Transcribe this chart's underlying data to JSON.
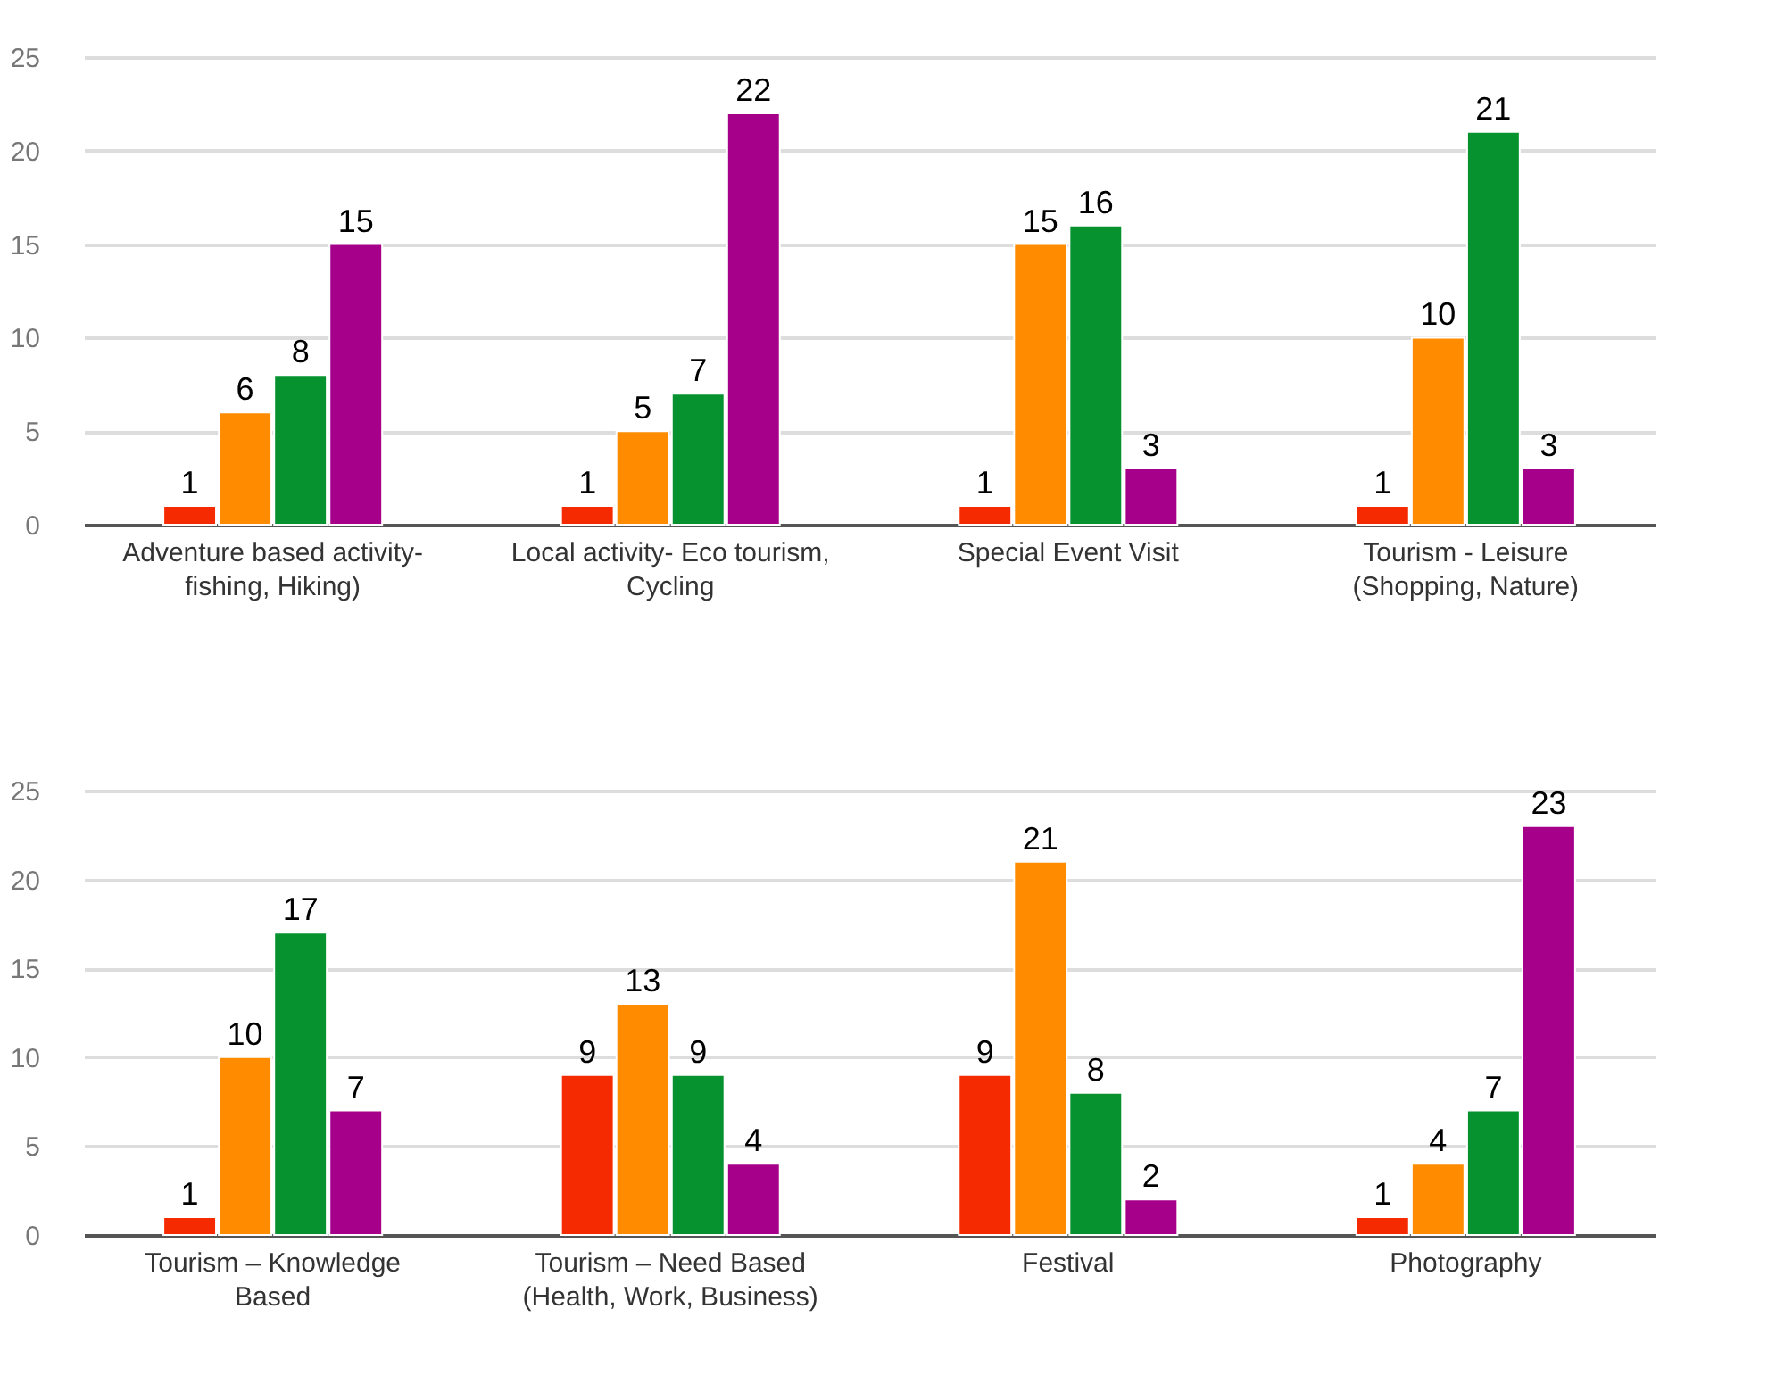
{
  "chart_data": [
    {
      "type": "bar",
      "categories": [
        "Adventure based activity-\nfishing, Hiking)",
        "Local activity- Eco tourism,\nCycling",
        "Special Event Visit",
        "Tourism - Leisure\n(Shopping, Nature)"
      ],
      "series": [
        {
          "color": "#f52a00",
          "values": [
            1,
            1,
            1,
            1
          ]
        },
        {
          "color": "#ff8c00",
          "values": [
            6,
            5,
            15,
            10
          ]
        },
        {
          "color": "#05922f",
          "values": [
            8,
            7,
            16,
            21
          ]
        },
        {
          "color": "#a6008b",
          "values": [
            15,
            22,
            3,
            3
          ]
        }
      ],
      "data_labels": true,
      "ylim": [
        0,
        25
      ],
      "yticks": [
        0,
        5,
        10,
        15,
        20,
        25
      ],
      "grid": "y"
    },
    {
      "type": "bar",
      "categories": [
        "Tourism – Knowledge\nBased",
        "Tourism – Need Based\n(Health, Work, Business)",
        "Festival",
        "Photography"
      ],
      "series": [
        {
          "color": "#f52a00",
          "values": [
            1,
            9,
            9,
            1
          ]
        },
        {
          "color": "#ff8c00",
          "values": [
            10,
            13,
            21,
            4
          ]
        },
        {
          "color": "#05922f",
          "values": [
            17,
            9,
            8,
            7
          ]
        },
        {
          "color": "#a6008b",
          "values": [
            7,
            4,
            2,
            23
          ]
        }
      ],
      "data_labels": true,
      "ylim": [
        0,
        25
      ],
      "yticks": [
        0,
        5,
        10,
        15,
        20,
        25
      ],
      "grid": "y"
    }
  ]
}
